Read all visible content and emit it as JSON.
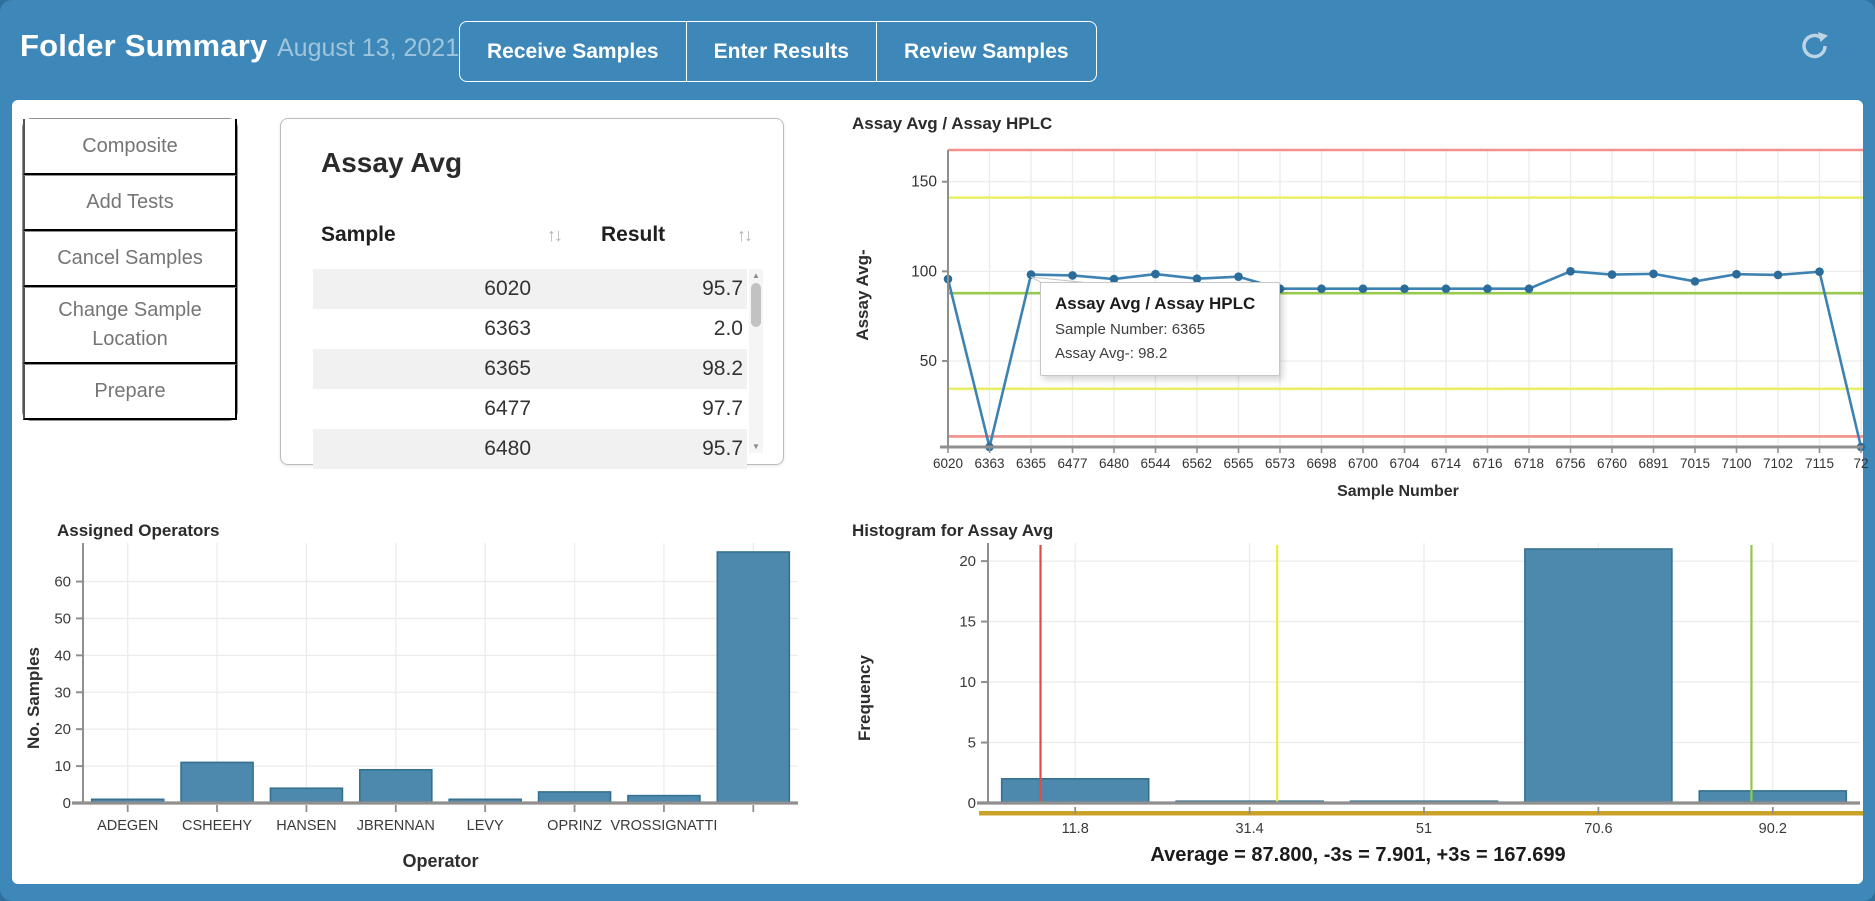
{
  "header": {
    "title": "Folder Summary",
    "date": "August 13, 2021",
    "actions": [
      {
        "label": "Receive Samples"
      },
      {
        "label": "Enter Results"
      },
      {
        "label": "Review Samples"
      }
    ]
  },
  "sidebar": {
    "items": [
      {
        "label": "Composite"
      },
      {
        "label": "Add Tests"
      },
      {
        "label": "Cancel Samples"
      },
      {
        "label": "Change Sample Location"
      },
      {
        "label": "Prepare"
      }
    ]
  },
  "assay_table": {
    "title": "Assay Avg",
    "columns": [
      "Sample",
      "Result"
    ],
    "sort_icon": "↑↓",
    "rows": [
      {
        "sample": "6020",
        "result": "95.7"
      },
      {
        "sample": "6363",
        "result": "2.0"
      },
      {
        "sample": "6365",
        "result": "98.2"
      },
      {
        "sample": "6477",
        "result": "97.7"
      },
      {
        "sample": "6480",
        "result": "95.7"
      }
    ]
  },
  "tooltip": {
    "title": "Assay Avg / Assay HPLC",
    "line1": "Sample Number: 6365",
    "line2": "Assay Avg-: 98.2"
  },
  "colors": {
    "header_blue": "#3d88b8",
    "bar_fill": "#4d89ad",
    "bar_border": "#35718f",
    "line_blue": "#3d82b2",
    "marker_blue": "#2b6c9b",
    "limit_red": "#f2918c",
    "limit_yellow": "#e9ef67",
    "limit_green": "#97ca4d",
    "gold_baseline": "#c9a227",
    "grid": "#ececec",
    "spine": "#8f8f8f"
  },
  "chart_data": [
    {
      "type": "line",
      "title": "Assay Avg / Assay HPLC",
      "xlabel": "Sample Number",
      "ylabel": "Assay Avg-",
      "categories": [
        "6020",
        "6363",
        "6365",
        "6477",
        "6480",
        "6544",
        "6562",
        "6565",
        "6573",
        "6698",
        "6700",
        "6704",
        "6714",
        "6716",
        "6718",
        "6756",
        "6760",
        "6891",
        "7015",
        "7100",
        "7102",
        "7115",
        "72"
      ],
      "values": [
        95.7,
        2.0,
        98.2,
        97.7,
        95.7,
        98.5,
        95.9,
        97.0,
        90.3,
        90.3,
        90.3,
        90.3,
        90.3,
        90.3,
        90.3,
        100.0,
        98.2,
        98.6,
        94.4,
        98.4,
        98.0,
        99.8,
        2.0
      ],
      "yticks": [
        50,
        100,
        150
      ],
      "ylim": [
        2,
        167.699
      ],
      "grid": true,
      "control_lines": [
        {
          "name": "+3s",
          "value": 167.699,
          "color": "#f2918c"
        },
        {
          "name": "+2s",
          "value": 141.13,
          "color": "#e9ef67"
        },
        {
          "name": "average",
          "value": 87.8,
          "color": "#97ca4d"
        },
        {
          "name": "-2s",
          "value": 34.47,
          "color": "#e9ef67"
        },
        {
          "name": "-3s",
          "value": 7.901,
          "color": "#f2918c"
        }
      ],
      "line_color": "#3d82b2",
      "marker_color": "#2b6c9b"
    },
    {
      "type": "bar",
      "title": "Assigned Operators",
      "xlabel": "Operator",
      "ylabel": "No. Samples",
      "categories": [
        "ADEGEN",
        "CSHEEHY",
        "HANSEN",
        "JBRENNAN",
        "LEVY",
        "OPRINZ",
        "VROSSIGNATTI",
        ""
      ],
      "values": [
        1,
        11,
        4,
        9,
        1,
        3,
        2,
        68
      ],
      "yticks": [
        0,
        10,
        20,
        30,
        40,
        50,
        60
      ],
      "ylim": [
        0,
        68
      ],
      "grid": true,
      "bar_color": "#4d89ad",
      "bar_border": "#35718f"
    },
    {
      "type": "bar",
      "subtype": "histogram",
      "title": "Histogram for Assay Avg",
      "xlabel": "",
      "ylabel": "Frequency",
      "categories": [
        "11.8",
        "31.4",
        "51",
        "70.6",
        "90.2"
      ],
      "values": [
        2,
        0.15,
        0.15,
        21,
        1
      ],
      "bin_width": 19.6,
      "yticks": [
        0,
        5,
        10,
        15,
        20
      ],
      "ylim": [
        0,
        21
      ],
      "grid": true,
      "vlines": [
        {
          "name": "-3s",
          "value": 7.901,
          "color": "#e04b43"
        },
        {
          "name": "-2s",
          "value": 34.5,
          "color": "#eeea3e"
        },
        {
          "name": "average",
          "value": 87.8,
          "color": "#8fc94c"
        }
      ],
      "baseline_color": "#c9a227",
      "caption": "Average = 87.800, -3s = 7.901, +3s = 167.699",
      "bar_color": "#4d89ad",
      "bar_border": "#35718f"
    }
  ]
}
